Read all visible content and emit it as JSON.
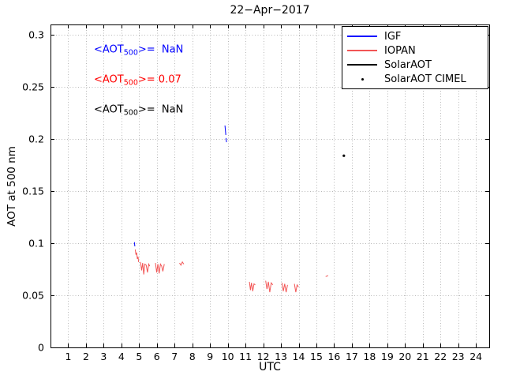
{
  "chart_data": {
    "type": "line",
    "title": "22−Apr−2017",
    "xlabel": "UTC",
    "ylabel": "AOT at 500 nm",
    "xlim": [
      0,
      24.75
    ],
    "ylim": [
      0,
      0.31
    ],
    "xticks": [
      1,
      2,
      3,
      4,
      5,
      6,
      7,
      8,
      9,
      10,
      11,
      12,
      13,
      14,
      15,
      16,
      17,
      18,
      19,
      20,
      21,
      22,
      23,
      24
    ],
    "yticks": [
      {
        "value": 0,
        "label": "0"
      },
      {
        "value": 0.05,
        "label": "0.05"
      },
      {
        "value": 0.1,
        "label": "0.1"
      },
      {
        "value": 0.15,
        "label": "0.15"
      },
      {
        "value": 0.2,
        "label": "0.2"
      },
      {
        "value": 0.25,
        "label": "0.25"
      },
      {
        "value": 0.3,
        "label": "0.3"
      }
    ],
    "grid": true,
    "grid_color": "#b8b8b8",
    "legend_position": "top-right",
    "series": [
      {
        "name": "IGF",
        "color": "#0000ff",
        "style": "line",
        "segments": [
          [
            [
              4.73,
              0.101
            ],
            [
              4.76,
              0.097
            ]
          ],
          [
            [
              9.84,
              0.213
            ],
            [
              9.87,
              0.208
            ],
            [
              9.89,
              0.204
            ]
          ],
          [
            [
              9.9,
              0.201
            ],
            [
              9.93,
              0.197
            ]
          ]
        ]
      },
      {
        "name": "IOPAN",
        "color": "#f25555",
        "style": "line",
        "segments": [
          [
            [
              4.78,
              0.094
            ],
            [
              4.82,
              0.089
            ],
            [
              4.86,
              0.091
            ],
            [
              4.9,
              0.085
            ],
            [
              4.94,
              0.087
            ],
            [
              4.97,
              0.082
            ]
          ],
          [
            [
              5.08,
              0.082
            ],
            [
              5.14,
              0.074
            ],
            [
              5.2,
              0.081
            ],
            [
              5.26,
              0.07
            ],
            [
              5.32,
              0.08
            ],
            [
              5.4,
              0.079
            ],
            [
              5.47,
              0.072
            ],
            [
              5.54,
              0.08
            ],
            [
              5.6,
              0.078
            ]
          ],
          [
            [
              5.92,
              0.081
            ],
            [
              5.99,
              0.072
            ],
            [
              6.06,
              0.08
            ],
            [
              6.13,
              0.071
            ],
            [
              6.2,
              0.08
            ],
            [
              6.27,
              0.078
            ],
            [
              6.34,
              0.073
            ],
            [
              6.42,
              0.08
            ]
          ],
          [
            [
              7.28,
              0.081
            ],
            [
              7.36,
              0.079
            ],
            [
              7.44,
              0.082
            ],
            [
              7.52,
              0.08
            ]
          ],
          [
            [
              11.22,
              0.063
            ],
            [
              11.28,
              0.055
            ],
            [
              11.34,
              0.062
            ],
            [
              11.41,
              0.054
            ],
            [
              11.48,
              0.061
            ],
            [
              11.55,
              0.06
            ]
          ],
          [
            [
              12.14,
              0.064
            ],
            [
              12.21,
              0.056
            ],
            [
              12.29,
              0.063
            ],
            [
              12.37,
              0.053
            ],
            [
              12.45,
              0.062
            ],
            [
              12.54,
              0.06
            ]
          ],
          [
            [
              13.06,
              0.062
            ],
            [
              13.13,
              0.054
            ],
            [
              13.21,
              0.061
            ],
            [
              13.29,
              0.053
            ],
            [
              13.37,
              0.06
            ]
          ],
          [
            [
              13.76,
              0.061
            ],
            [
              13.84,
              0.053
            ],
            [
              13.91,
              0.06
            ],
            [
              13.99,
              0.058
            ]
          ],
          [
            [
              15.52,
              0.068
            ],
            [
              15.66,
              0.069
            ]
          ]
        ]
      },
      {
        "name": "SolarAOT",
        "color": "#000000",
        "style": "line",
        "segments": []
      },
      {
        "name": "SolarAOT CIMEL",
        "color": "#000000",
        "style": "point",
        "points": [
          [
            16.55,
            0.184
          ]
        ]
      }
    ],
    "annotations": [
      {
        "series": "igf",
        "pre": "<AOT",
        "sub": "500",
        "post": ">=  NaN",
        "color": "#0000ff",
        "x": 2.45,
        "y": 0.284
      },
      {
        "series": "iopan",
        "pre": "<AOT",
        "sub": "500",
        "post": ">= 0.07",
        "color": "#ff0000",
        "x": 2.45,
        "y": 0.2555
      },
      {
        "series": "solaraot",
        "pre": "<AOT",
        "sub": "500",
        "post": ">=  NaN",
        "color": "#000000",
        "x": 2.45,
        "y": 0.2265
      }
    ]
  }
}
